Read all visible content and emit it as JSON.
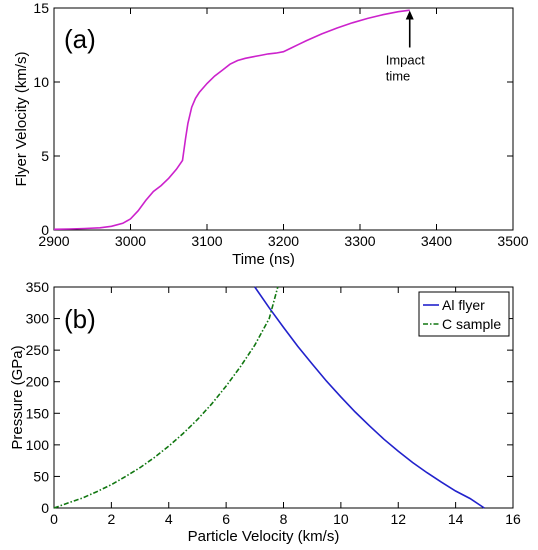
{
  "chart_data": [
    {
      "type": "line",
      "panel_label": "(a)",
      "xlabel": "Time (ns)",
      "ylabel": "Flyer Velocity (km/s)",
      "xlim": [
        2900,
        3500
      ],
      "ylim": [
        0,
        15
      ],
      "xticks": [
        2900,
        3000,
        3100,
        3200,
        3300,
        3400,
        3500
      ],
      "yticks": [
        0,
        5,
        10,
        15
      ],
      "grid": false,
      "series": [
        {
          "color": "#cc22cc",
          "x": [
            2900,
            2920,
            2940,
            2960,
            2975,
            2990,
            3000,
            3010,
            3020,
            3030,
            3040,
            3050,
            3060,
            3068,
            3072,
            3075,
            3080,
            3085,
            3090,
            3100,
            3110,
            3120,
            3130,
            3140,
            3150,
            3160,
            3170,
            3180,
            3190,
            3200,
            3210,
            3220,
            3230,
            3250,
            3270,
            3290,
            3310,
            3330,
            3350,
            3365
          ],
          "y": [
            0.05,
            0.07,
            0.1,
            0.15,
            0.25,
            0.45,
            0.75,
            1.3,
            2.0,
            2.6,
            3.0,
            3.5,
            4.1,
            4.7,
            6.2,
            7.2,
            8.3,
            8.9,
            9.3,
            9.9,
            10.4,
            10.8,
            11.2,
            11.45,
            11.6,
            11.7,
            11.8,
            11.9,
            11.95,
            12.05,
            12.3,
            12.55,
            12.8,
            13.25,
            13.65,
            14.0,
            14.3,
            14.55,
            14.75,
            14.85
          ]
        }
      ],
      "annotations": [
        {
          "text": [
            "Impact",
            "time"
          ],
          "x": 3365,
          "y": 14.9
        }
      ]
    },
    {
      "type": "line",
      "panel_label": "(b)",
      "xlabel": "Particle Velocity (km/s)",
      "ylabel": "Pressure (GPa)",
      "xlim": [
        0,
        16
      ],
      "ylim": [
        0,
        350
      ],
      "xticks": [
        0,
        2,
        4,
        6,
        8,
        10,
        12,
        14,
        16
      ],
      "yticks": [
        0,
        50,
        100,
        150,
        200,
        250,
        300,
        350
      ],
      "grid": false,
      "legend_position": "top-right",
      "series": [
        {
          "name": "Al flyer",
          "color": "#2222cc",
          "dash": "solid",
          "x": [
            7.0,
            7.5,
            8.0,
            8.5,
            9.0,
            9.5,
            10.0,
            10.5,
            11.0,
            11.5,
            12.0,
            12.5,
            13.0,
            13.5,
            14.0,
            14.5,
            15.0
          ],
          "y": [
            350,
            317,
            286,
            256,
            228,
            201,
            176,
            152,
            130,
            109,
            90,
            72,
            56,
            41,
            27,
            15,
            0
          ]
        },
        {
          "name": "C sample",
          "color": "#117711",
          "dash": "dashdot",
          "x": [
            0,
            0.5,
            1,
            1.5,
            2,
            2.5,
            3,
            3.5,
            4,
            4.5,
            5,
            5.5,
            6,
            6.5,
            7,
            7.5,
            7.8
          ],
          "y": [
            0,
            8,
            16,
            26,
            37,
            50,
            64,
            80,
            98,
            118,
            140,
            165,
            193,
            224,
            258,
            300,
            350
          ]
        }
      ]
    }
  ]
}
